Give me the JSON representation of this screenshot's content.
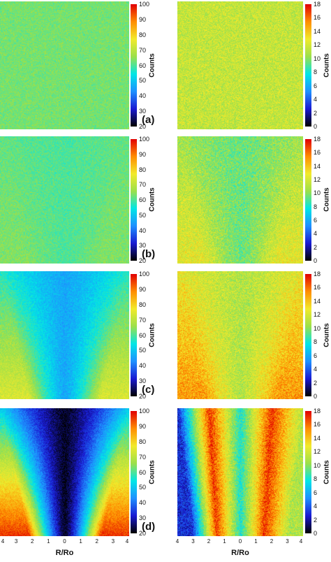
{
  "chart_data": {
    "type": "heatmap",
    "panel_labels": [
      "(a)",
      "(b)",
      "(c)",
      "(d)"
    ],
    "colorbar_label": "Counts",
    "colorbars": {
      "left": {
        "ticks": [
          "20",
          "30",
          "40",
          "50",
          "60",
          "70",
          "80",
          "90",
          "100"
        ],
        "range": [
          20,
          100
        ]
      },
      "right": {
        "ticks": [
          "0",
          "2",
          "4",
          "6",
          "8",
          "10",
          "12",
          "14",
          "16",
          "18"
        ],
        "range": [
          0,
          18
        ]
      }
    },
    "x_axis": {
      "label": "R/Ro",
      "ticks": [
        "4",
        "3",
        "2",
        "1",
        "0",
        "1",
        "2",
        "3",
        "4"
      ],
      "range": [
        -4,
        4
      ]
    },
    "colormap": [
      "#000000",
      "#1a1ad2",
      "#1e90ff",
      "#00e6e6",
      "#9be04b",
      "#f2ea2b",
      "#ff8c00",
      "#e10000"
    ],
    "left_column": [
      {
        "panel": "(a)",
        "profile_center": 63,
        "profile_edge": 63
      },
      {
        "panel": "(b)",
        "profile_center": 60,
        "profile_edge": 64
      },
      {
        "panel": "(c)",
        "profile_center": 46,
        "profile_edge": 74
      },
      {
        "panel": "(d)",
        "profile_center": 22,
        "profile_edge": 96
      }
    ],
    "right_column": [
      {
        "panel": "(a)",
        "profile_center": 11.5,
        "profile_edge": 11.5
      },
      {
        "panel": "(b)",
        "profile_center": 9.5,
        "profile_edge": 12.5
      },
      {
        "panel": "(c)",
        "profile_center": 11,
        "profile_edge": 15
      },
      {
        "panel": "(d)",
        "profile_values": [
          3,
          17,
          8,
          17,
          11
        ],
        "profile_x": [
          -4,
          -2,
          0,
          2,
          4
        ]
      }
    ]
  }
}
